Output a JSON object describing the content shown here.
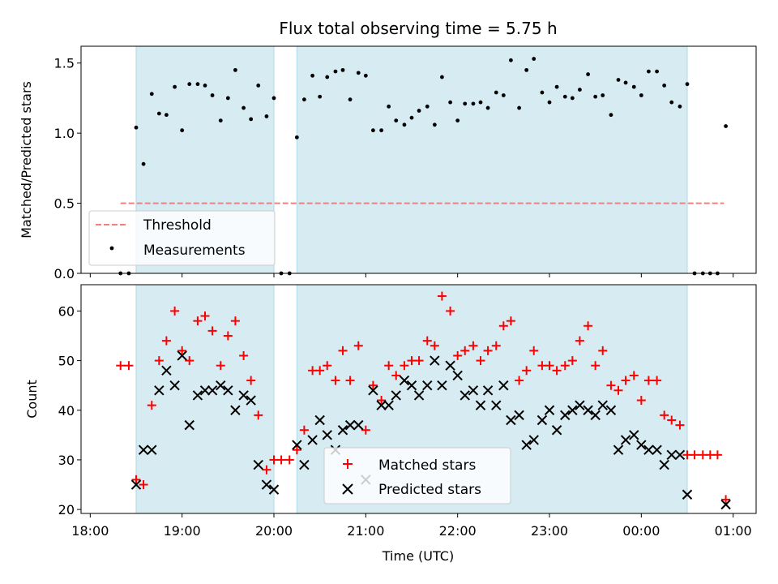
{
  "chart_data": [
    {
      "type": "scatter",
      "panel": "top",
      "title": "Flux total observing time = 5.75 h",
      "ylabel": "Matched/Predicted stars",
      "xlabel": "",
      "xlim": [
        17.9,
        25.25
      ],
      "ylim": [
        0,
        1.62
      ],
      "yticks": [
        0.0,
        0.5,
        1.0,
        1.5
      ],
      "ytick_labels": [
        "0.0",
        "0.5",
        "1.0",
        "1.5"
      ],
      "xticks": [
        18,
        19,
        20,
        21,
        22,
        23,
        24,
        25
      ],
      "shaded_intervals": [
        [
          18.5,
          20.0
        ],
        [
          20.25,
          24.5
        ]
      ],
      "shade_color": "#add8e6",
      "threshold": {
        "label": "Threshold",
        "value": 0.5,
        "x_range": [
          18.33,
          24.9
        ],
        "color": "#f08080"
      },
      "series": [
        {
          "name": "Measurements",
          "marker": "dot",
          "color": "#000000",
          "x": [
            18.33,
            18.42,
            18.5,
            18.58,
            18.67,
            18.75,
            18.83,
            18.92,
            19.0,
            19.08,
            19.17,
            19.25,
            19.33,
            19.42,
            19.5,
            19.58,
            19.67,
            19.75,
            19.83,
            19.92,
            20.0,
            20.08,
            20.17,
            20.25,
            20.33,
            20.42,
            20.5,
            20.58,
            20.67,
            20.75,
            20.83,
            20.92,
            21.0,
            21.08,
            21.17,
            21.25,
            21.33,
            21.42,
            21.5,
            21.58,
            21.67,
            21.75,
            21.83,
            21.92,
            22.0,
            22.08,
            22.17,
            22.25,
            22.33,
            22.42,
            22.5,
            22.58,
            22.67,
            22.75,
            22.83,
            22.92,
            23.0,
            23.08,
            23.17,
            23.25,
            23.33,
            23.42,
            23.5,
            23.58,
            23.67,
            23.75,
            23.83,
            23.92,
            24.0,
            24.08,
            24.17,
            24.25,
            24.33,
            24.42,
            24.5,
            24.58,
            24.67,
            24.75,
            24.83,
            24.92
          ],
          "y": [
            0.0,
            0.0,
            1.04,
            0.78,
            1.28,
            1.14,
            1.13,
            1.33,
            1.02,
            1.35,
            1.35,
            1.34,
            1.27,
            1.09,
            1.25,
            1.45,
            1.18,
            1.1,
            1.34,
            1.12,
            1.25,
            0.0,
            0.0,
            0.97,
            1.24,
            1.41,
            1.26,
            1.4,
            1.44,
            1.45,
            1.24,
            1.43,
            1.41,
            1.02,
            1.02,
            1.19,
            1.09,
            1.06,
            1.11,
            1.16,
            1.19,
            1.06,
            1.4,
            1.22,
            1.09,
            1.21,
            1.21,
            1.22,
            1.18,
            1.29,
            1.27,
            1.52,
            1.18,
            1.45,
            1.53,
            1.29,
            1.22,
            1.33,
            1.26,
            1.25,
            1.31,
            1.42,
            1.26,
            1.27,
            1.13,
            1.38,
            1.36,
            1.33,
            1.27,
            1.44,
            1.44,
            1.34,
            1.22,
            1.19,
            1.35,
            0.0,
            0.0,
            0.0,
            0.0,
            1.05
          ]
        }
      ],
      "legend": [
        {
          "label": "Threshold"
        },
        {
          "label": "Measurements"
        }
      ],
      "legend_position": "lower-left"
    },
    {
      "type": "scatter",
      "panel": "bottom",
      "title": "",
      "ylabel": "Count",
      "xlabel": "Time (UTC)",
      "xlim": [
        17.9,
        25.25
      ],
      "ylim": [
        19.2,
        65.3
      ],
      "yticks": [
        20,
        30,
        40,
        50,
        60
      ],
      "ytick_labels": [
        "20",
        "30",
        "40",
        "50",
        "60"
      ],
      "xticks": [
        18,
        19,
        20,
        21,
        22,
        23,
        24,
        25
      ],
      "xtick_labels": [
        "18:00",
        "19:00",
        "20:00",
        "21:00",
        "22:00",
        "23:00",
        "00:00",
        "01:00"
      ],
      "shaded_intervals": [
        [
          18.5,
          20.0
        ],
        [
          20.25,
          24.5
        ]
      ],
      "shade_color": "#add8e6",
      "series": [
        {
          "name": "Matched stars",
          "marker": "plus",
          "color": "#ff0000",
          "x": [
            18.33,
            18.42,
            18.5,
            18.58,
            18.67,
            18.75,
            18.83,
            18.92,
            19.0,
            19.08,
            19.17,
            19.25,
            19.33,
            19.42,
            19.5,
            19.58,
            19.67,
            19.75,
            19.83,
            19.92,
            20.0,
            20.08,
            20.17,
            20.25,
            20.33,
            20.42,
            20.5,
            20.58,
            20.67,
            20.75,
            20.83,
            20.92,
            21.0,
            21.08,
            21.17,
            21.25,
            21.33,
            21.42,
            21.5,
            21.58,
            21.67,
            21.75,
            21.83,
            21.92,
            22.0,
            22.08,
            22.17,
            22.25,
            22.33,
            22.42,
            22.5,
            22.58,
            22.67,
            22.75,
            22.83,
            22.92,
            23.0,
            23.08,
            23.17,
            23.25,
            23.33,
            23.42,
            23.5,
            23.58,
            23.67,
            23.75,
            23.83,
            23.92,
            24.0,
            24.08,
            24.17,
            24.25,
            24.33,
            24.42,
            24.5,
            24.58,
            24.67,
            24.75,
            24.83,
            24.92
          ],
          "y": [
            49,
            49,
            26,
            25,
            41,
            50,
            54,
            60,
            52,
            50,
            58,
            59,
            56,
            49,
            55,
            58,
            51,
            46,
            39,
            28,
            30,
            30,
            30,
            32,
            36,
            48,
            48,
            49,
            46,
            52,
            46,
            53,
            36,
            45,
            42,
            49,
            47,
            49,
            50,
            50,
            54,
            53,
            63,
            60,
            51,
            52,
            53,
            50,
            52,
            53,
            57,
            58,
            46,
            48,
            52,
            49,
            49,
            48,
            49,
            50,
            54,
            57,
            49,
            52,
            45,
            44,
            46,
            47,
            42,
            46,
            46,
            39,
            38,
            37,
            31,
            31,
            31,
            31,
            31,
            22
          ]
        },
        {
          "name": "Predicted stars",
          "marker": "cross",
          "color": "#000000",
          "x": [
            18.5,
            18.58,
            18.67,
            18.75,
            18.83,
            18.92,
            19.0,
            19.08,
            19.17,
            19.25,
            19.33,
            19.42,
            19.5,
            19.58,
            19.67,
            19.75,
            19.83,
            19.92,
            20.0,
            20.25,
            20.33,
            20.42,
            20.5,
            20.58,
            20.67,
            20.75,
            20.83,
            20.92,
            21.0,
            21.08,
            21.17,
            21.25,
            21.33,
            21.42,
            21.5,
            21.58,
            21.67,
            21.75,
            21.83,
            21.92,
            22.0,
            22.08,
            22.17,
            22.25,
            22.33,
            22.42,
            22.5,
            22.58,
            22.67,
            22.75,
            22.83,
            22.92,
            23.0,
            23.08,
            23.17,
            23.25,
            23.33,
            23.42,
            23.5,
            23.58,
            23.67,
            23.75,
            23.83,
            23.92,
            24.0,
            24.08,
            24.17,
            24.25,
            24.33,
            24.42,
            24.5,
            24.92
          ],
          "y": [
            25,
            32,
            32,
            44,
            48,
            45,
            51,
            37,
            43,
            44,
            44,
            45,
            44,
            40,
            43,
            42,
            29,
            25,
            24,
            33,
            29,
            34,
            38,
            35,
            32,
            36,
            37,
            37,
            26,
            44,
            41,
            41,
            43,
            46,
            45,
            43,
            45,
            50,
            45,
            49,
            47,
            43,
            44,
            41,
            44,
            41,
            45,
            38,
            39,
            33,
            34,
            38,
            40,
            36,
            39,
            40,
            41,
            40,
            39,
            41,
            40,
            32,
            34,
            35,
            33,
            32,
            32,
            29,
            31,
            31,
            23,
            21
          ]
        }
      ],
      "legend": [
        {
          "label": "Matched stars"
        },
        {
          "label": "Predicted stars"
        }
      ],
      "legend_position": "lower-center"
    }
  ]
}
